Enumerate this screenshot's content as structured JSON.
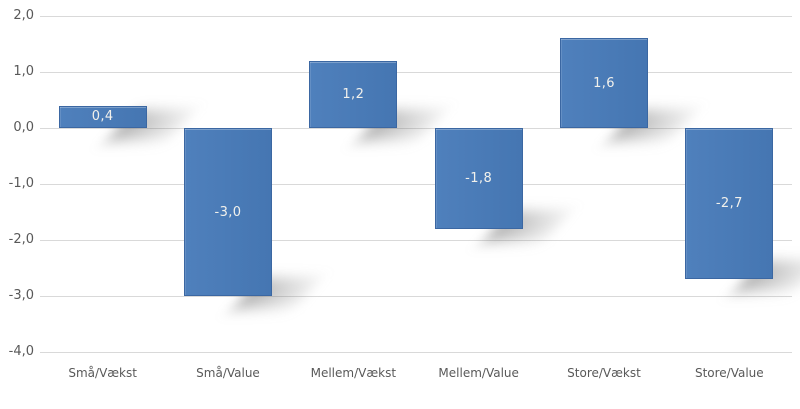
{
  "chart_data": {
    "type": "bar",
    "title": "",
    "xlabel": "",
    "ylabel": "",
    "categories": [
      "Små/Vækst",
      "Små/Value",
      "Mellem/Vækst",
      "Mellem/Value",
      "Store/Vækst",
      "Store/Value"
    ],
    "values": [
      0.4,
      -3.0,
      1.2,
      -1.8,
      1.6,
      -2.7
    ],
    "value_labels": [
      "0,4",
      "-3,0",
      "1,2",
      "-1,8",
      "1,6",
      "-2,7"
    ],
    "y_ticks": [
      {
        "value": 2,
        "label": "2,0"
      },
      {
        "value": 1,
        "label": "1,0"
      },
      {
        "value": 0,
        "label": "0,0"
      },
      {
        "value": -1,
        "label": "-1,0"
      },
      {
        "value": -2,
        "label": "-2,0"
      },
      {
        "value": -3,
        "label": "-3,0"
      },
      {
        "value": -4,
        "label": "-4,0"
      }
    ],
    "ylim": [
      -4.0,
      2.0
    ],
    "grid": true,
    "legend_position": "none",
    "colors": {
      "bar_fill": "#4a7db9",
      "bar_border": "#3b67a2",
      "gridline": "#d9d9d9",
      "tick_text": "#595959",
      "data_label": "#f2f1ec",
      "background": "#ffffff"
    }
  }
}
